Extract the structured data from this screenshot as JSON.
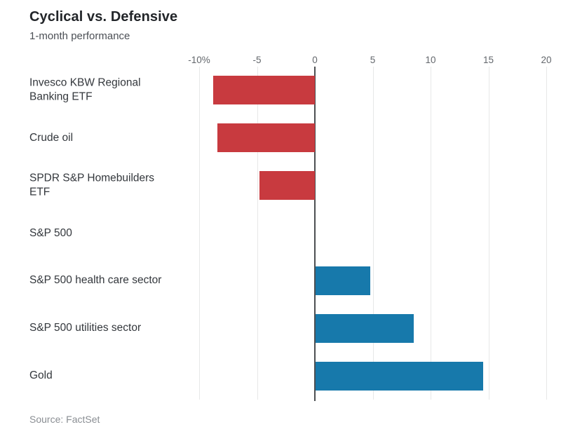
{
  "header": {
    "title": "Cyclical vs. Defensive",
    "subtitle": "1-month performance"
  },
  "footer": {
    "source": "Source: FactSet"
  },
  "colors": {
    "negative_bar": "#c83a3f",
    "positive_bar": "#1779ab",
    "gridline": "#e7e8e8",
    "zero_line": "#4c4f52",
    "tick_text": "#63676c",
    "category_text": "#33373c"
  },
  "chart_data": {
    "type": "bar",
    "orientation": "horizontal",
    "title": "Cyclical vs. Defensive",
    "subtitle": "1-month performance",
    "xlabel": "",
    "ylabel": "",
    "xlim": [
      -10,
      20
    ],
    "grid": "vertical",
    "legend": "none",
    "unit": "percent",
    "categories": [
      "Invesco KBW Regional Banking ETF",
      "Crude oil",
      "SPDR S&P Homebuilders ETF",
      "S&P 500",
      "S&P 500 health care sector",
      "S&P 500 utilities sector",
      "Gold"
    ],
    "values": [
      -8.8,
      -8.4,
      -4.8,
      0,
      4.7,
      8.5,
      14.5
    ],
    "ticks": {
      "values": [
        -10,
        -5,
        0,
        5,
        10,
        15,
        20
      ],
      "labels": [
        "-10%",
        "-5",
        "0",
        "5",
        "10",
        "15",
        "20"
      ]
    },
    "source": "Source: FactSet"
  }
}
